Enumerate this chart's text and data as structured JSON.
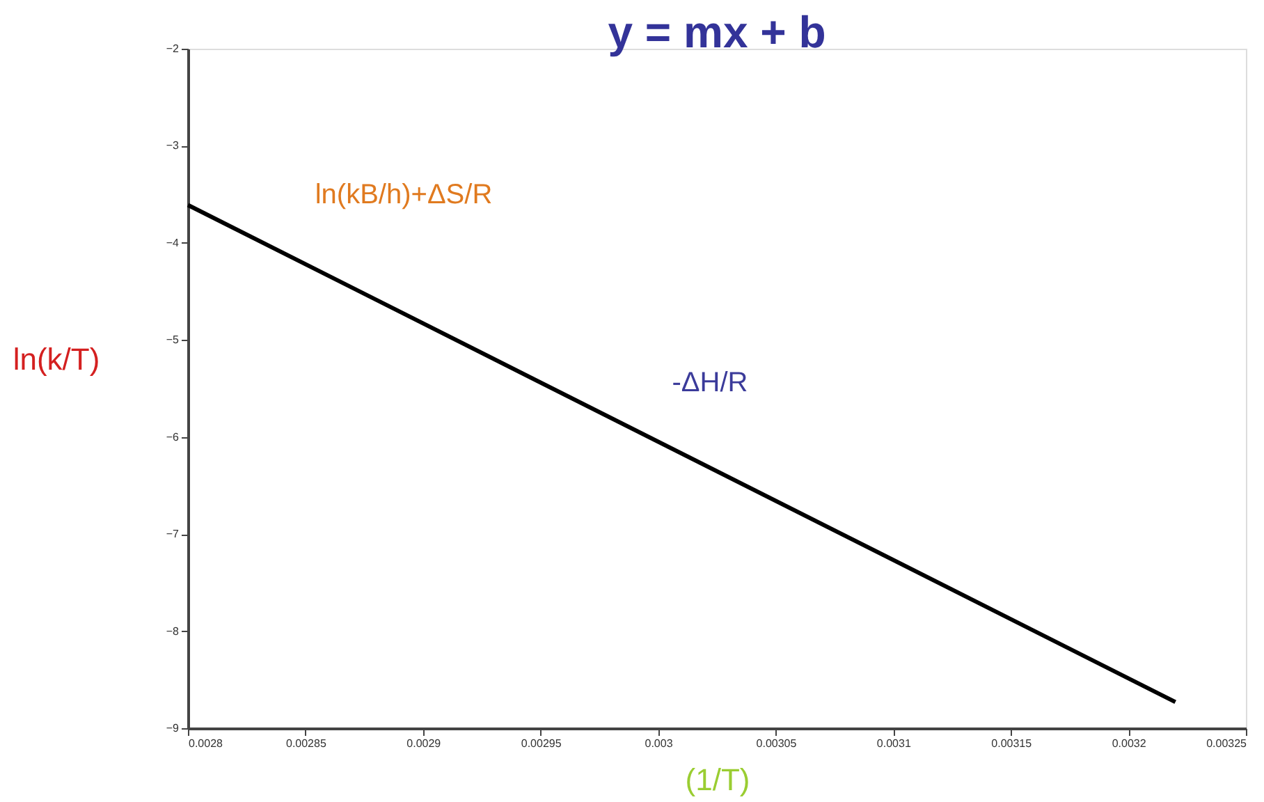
{
  "chart_data": {
    "type": "line",
    "title": "y = mx + b",
    "xlabel": "(1/T)",
    "ylabel": "ln(k/T)",
    "x": [
      0.0028,
      0.00322
    ],
    "series": [
      {
        "color": "#000000",
        "values": [
          -3.61,
          -8.73
        ]
      }
    ],
    "xlim": [
      0.0028,
      0.00325
    ],
    "xticks": [
      0.0028,
      0.00285,
      0.0029,
      0.00295,
      0.003,
      0.00305,
      0.0031,
      0.00315,
      0.0032,
      0.00325
    ],
    "ylim": [
      -9,
      -2
    ],
    "yticks": [
      -9,
      -8,
      -7,
      -6,
      -5,
      -4,
      -3,
      -2
    ],
    "annotations": [
      "ln(kB/h)+ΔS/R",
      "-ΔH/R"
    ],
    "grid": false,
    "marker": "none",
    "line_style": "solid"
  }
}
